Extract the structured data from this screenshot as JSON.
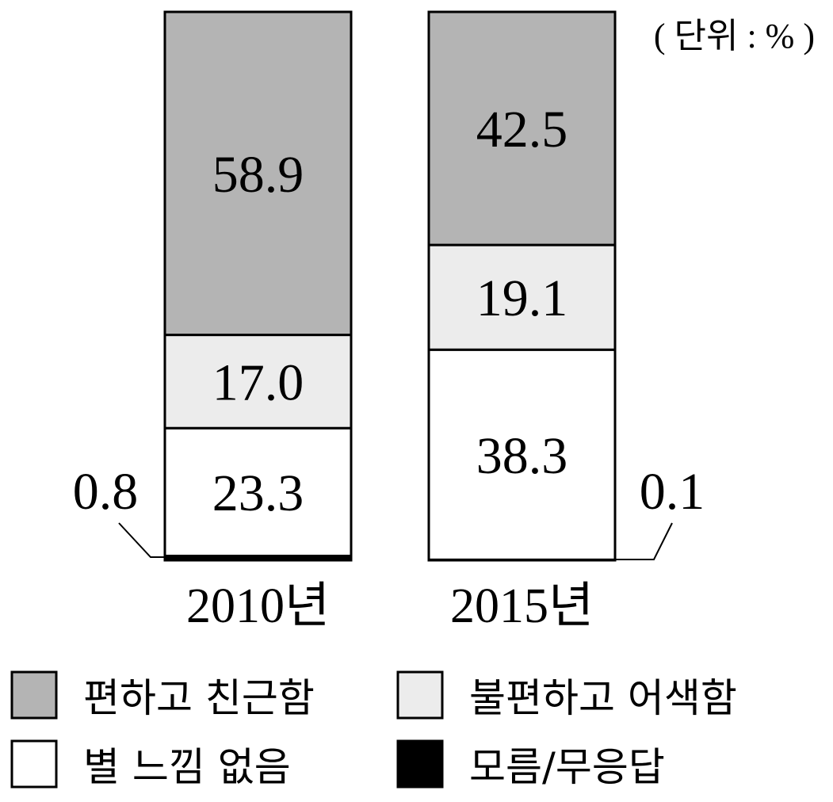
{
  "chart_data": {
    "type": "bar",
    "stacked": true,
    "unit_note": "( 단위 : % )",
    "categories": [
      "2010년",
      "2015년"
    ],
    "series": [
      {
        "name": "모름/무응답",
        "values": [
          0.8,
          0.1
        ],
        "color": "#000000"
      },
      {
        "name": "별 느낌 없음",
        "values": [
          23.3,
          38.3
        ],
        "color": "#ffffff"
      },
      {
        "name": "불편하고 어색함",
        "values": [
          17.0,
          19.1
        ],
        "color": "#ececec"
      },
      {
        "name": "편하고 친근함",
        "values": [
          58.9,
          42.5
        ],
        "color": "#b4b4b4"
      }
    ],
    "data_labels": [
      [
        "0.8",
        "23.3",
        "17.0",
        "58.9"
      ],
      [
        "0.1",
        "38.3",
        "19.1",
        "42.5"
      ]
    ],
    "legend_order": [
      "편하고 친근함",
      "불편하고 어색함",
      "별 느낌 없음",
      "모름/무응답"
    ],
    "legend_placement": "bottom",
    "ylim": [
      0,
      100
    ],
    "grid": false
  }
}
